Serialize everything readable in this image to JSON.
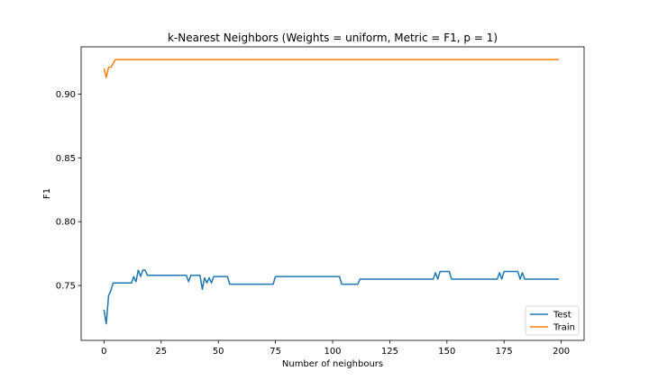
{
  "chart_data": {
    "type": "line",
    "title": "k-Nearest Neighbors (Weights = uniform, Metric = F1, p = 1)",
    "xlabel": "Number of neighbours",
    "ylabel": "F1",
    "xlim": [
      -10,
      210
    ],
    "ylim": [
      0.707,
      0.937
    ],
    "xticks": [
      0,
      25,
      50,
      75,
      100,
      125,
      150,
      175,
      200
    ],
    "yticks": [
      0.75,
      0.8,
      0.85,
      0.9
    ],
    "ytick_labels": [
      "0.75",
      "0.80",
      "0.85",
      "0.90"
    ],
    "grid": false,
    "legend_position": "lower-right",
    "series": [
      {
        "name": "Test",
        "color": "#1f77b4",
        "points": [
          [
            0,
            0.731
          ],
          [
            1,
            0.72
          ],
          [
            2,
            0.742
          ],
          [
            3,
            0.746
          ],
          [
            4,
            0.752
          ],
          [
            5,
            0.752
          ],
          [
            6,
            0.752
          ],
          [
            12,
            0.752
          ],
          [
            13,
            0.757
          ],
          [
            14,
            0.753
          ],
          [
            15,
            0.762
          ],
          [
            16,
            0.757
          ],
          [
            17,
            0.762
          ],
          [
            18,
            0.762
          ],
          [
            19,
            0.758
          ],
          [
            20,
            0.758
          ],
          [
            36,
            0.758
          ],
          [
            37,
            0.753
          ],
          [
            38,
            0.758
          ],
          [
            42,
            0.758
          ],
          [
            43,
            0.747
          ],
          [
            44,
            0.756
          ],
          [
            45,
            0.752
          ],
          [
            46,
            0.756
          ],
          [
            47,
            0.752
          ],
          [
            48,
            0.757
          ],
          [
            54,
            0.757
          ],
          [
            55,
            0.751
          ],
          [
            74,
            0.751
          ],
          [
            75,
            0.757
          ],
          [
            103,
            0.757
          ],
          [
            104,
            0.751
          ],
          [
            111,
            0.751
          ],
          [
            112,
            0.755
          ],
          [
            144,
            0.755
          ],
          [
            145,
            0.76
          ],
          [
            146,
            0.755
          ],
          [
            147,
            0.761
          ],
          [
            151,
            0.761
          ],
          [
            152,
            0.755
          ],
          [
            172,
            0.755
          ],
          [
            173,
            0.76
          ],
          [
            174,
            0.755
          ],
          [
            175,
            0.761
          ],
          [
            181,
            0.761
          ],
          [
            182,
            0.755
          ],
          [
            183,
            0.76
          ],
          [
            184,
            0.755
          ],
          [
            199,
            0.755
          ]
        ]
      },
      {
        "name": "Train",
        "color": "#ff7f0e",
        "points": [
          [
            0,
            0.92
          ],
          [
            1,
            0.913
          ],
          [
            2,
            0.921
          ],
          [
            3,
            0.921
          ],
          [
            4,
            0.924
          ],
          [
            5,
            0.927
          ],
          [
            199,
            0.927
          ]
        ]
      }
    ]
  }
}
